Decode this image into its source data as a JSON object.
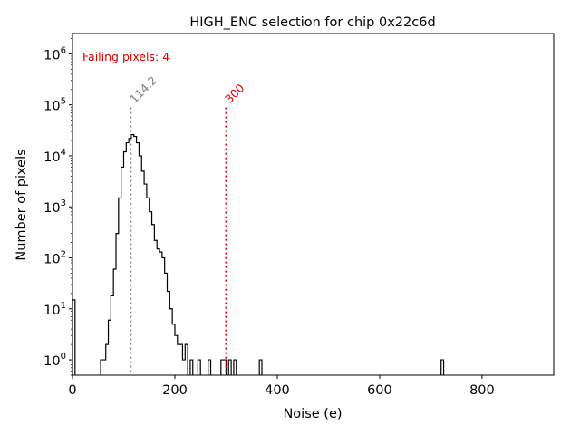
{
  "chart_data": {
    "type": "histogram",
    "title": "HIGH_ENC selection for chip 0x22c6d",
    "xlabel": "Noise (e)",
    "ylabel": "Number of pixels",
    "xlim": [
      0,
      940
    ],
    "ylim": [
      0.5,
      2500000
    ],
    "yscale": "log",
    "grid": false,
    "x_ticks": [
      0,
      200,
      400,
      600,
      800
    ],
    "x_tick_labels": [
      "0",
      "200",
      "400",
      "600",
      "800"
    ],
    "y_tick_values": [
      1,
      10,
      100,
      1000,
      10000,
      100000,
      1000000
    ],
    "y_tick_labels": [
      {
        "base": "10",
        "exp": "0"
      },
      {
        "base": "10",
        "exp": "1"
      },
      {
        "base": "10",
        "exp": "2"
      },
      {
        "base": "10",
        "exp": "3"
      },
      {
        "base": "10",
        "exp": "4"
      },
      {
        "base": "10",
        "exp": "5"
      },
      {
        "base": "10",
        "exp": "6"
      }
    ],
    "bin_width": 5,
    "bins": [
      [
        0,
        15
      ],
      [
        55,
        1
      ],
      [
        60,
        1
      ],
      [
        65,
        2
      ],
      [
        70,
        6
      ],
      [
        75,
        18
      ],
      [
        80,
        60
      ],
      [
        85,
        300
      ],
      [
        90,
        1500
      ],
      [
        95,
        6000
      ],
      [
        100,
        12000
      ],
      [
        105,
        18000
      ],
      [
        110,
        22000
      ],
      [
        115,
        26000
      ],
      [
        120,
        24000
      ],
      [
        125,
        18000
      ],
      [
        130,
        10000
      ],
      [
        135,
        5000
      ],
      [
        140,
        2800
      ],
      [
        145,
        1500
      ],
      [
        150,
        800
      ],
      [
        155,
        450
      ],
      [
        160,
        220
      ],
      [
        165,
        150
      ],
      [
        170,
        130
      ],
      [
        175,
        100
      ],
      [
        180,
        50
      ],
      [
        185,
        22
      ],
      [
        190,
        10
      ],
      [
        195,
        5
      ],
      [
        200,
        3
      ],
      [
        205,
        2
      ],
      [
        210,
        2
      ],
      [
        215,
        1
      ],
      [
        220,
        2
      ],
      [
        225,
        0
      ],
      [
        230,
        1
      ],
      [
        235,
        0
      ],
      [
        240,
        0
      ],
      [
        245,
        1
      ],
      [
        250,
        0
      ],
      [
        255,
        0
      ],
      [
        260,
        0
      ],
      [
        265,
        1
      ],
      [
        270,
        0
      ],
      [
        275,
        0
      ],
      [
        280,
        0
      ],
      [
        285,
        0
      ],
      [
        290,
        1
      ],
      [
        295,
        1
      ],
      [
        305,
        1
      ],
      [
        315,
        1
      ],
      [
        365,
        1
      ],
      [
        720,
        1
      ]
    ],
    "line_color": "#000000",
    "threshold_lines": [
      {
        "x": 114.2,
        "label": "114.2",
        "color": "#808080"
      },
      {
        "x": 300,
        "label": "300",
        "color": "#e00000"
      }
    ],
    "annotation": {
      "text": "Failing pixels: 4",
      "color": "#e00000"
    }
  }
}
